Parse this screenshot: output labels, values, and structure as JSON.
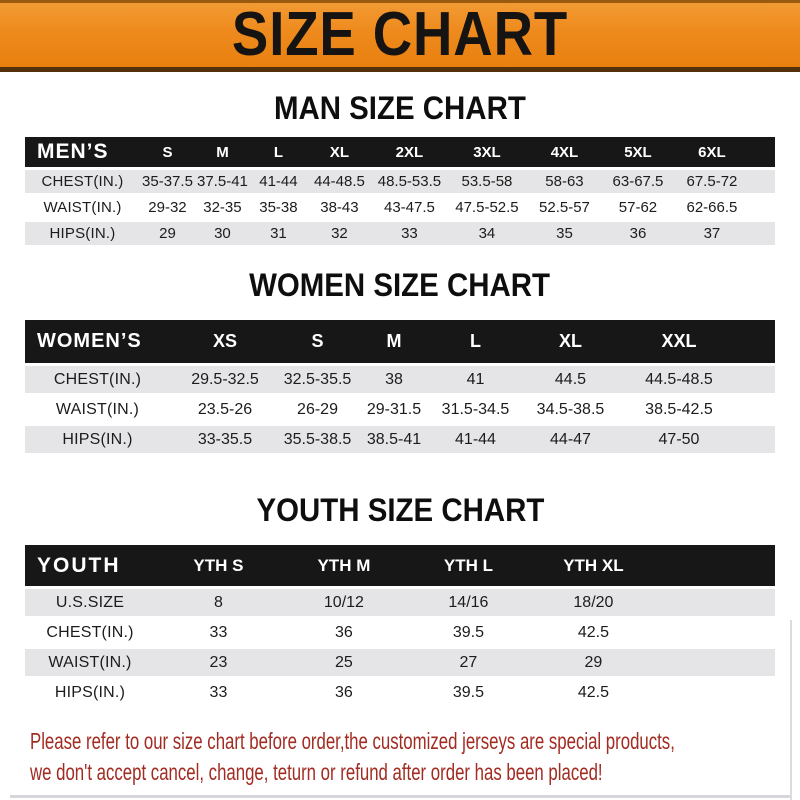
{
  "banner": {
    "title": "SIZE CHART"
  },
  "chart_data": [
    {
      "type": "table",
      "title": "MAN SIZE CHART",
      "corner_label": "MEN’S",
      "columns": [
        "S",
        "M",
        "L",
        "XL",
        "2XL",
        "3XL",
        "4XL",
        "5XL",
        "6XL"
      ],
      "rows": [
        {
          "label": "CHEST(IN.)",
          "values": [
            "35-37.5",
            "37.5-41",
            "41-44",
            "44-48.5",
            "48.5-53.5",
            "53.5-58",
            "58-63",
            "63-67.5",
            "67.5-72"
          ]
        },
        {
          "label": "WAIST(IN.)",
          "values": [
            "29-32",
            "32-35",
            "35-38",
            "38-43",
            "43-47.5",
            "47.5-52.5",
            "52.5-57",
            "57-62",
            "62-66.5"
          ]
        },
        {
          "label": "HIPS(IN.)",
          "values": [
            "29",
            "30",
            "31",
            "32",
            "33",
            "34",
            "35",
            "36",
            "37"
          ]
        }
      ]
    },
    {
      "type": "table",
      "title": "WOMEN SIZE CHART",
      "corner_label": "WOMEN’S",
      "columns": [
        "XS",
        "S",
        "M",
        "L",
        "XL",
        "XXL"
      ],
      "rows": [
        {
          "label": "CHEST(IN.)",
          "values": [
            "29.5-32.5",
            "32.5-35.5",
            "38",
            "41",
            "44.5",
            "44.5-48.5"
          ]
        },
        {
          "label": "WAIST(IN.)",
          "values": [
            "23.5-26",
            "26-29",
            "29-31.5",
            "31.5-34.5",
            "34.5-38.5",
            "38.5-42.5"
          ]
        },
        {
          "label": "HIPS(IN.)",
          "values": [
            "33-35.5",
            "35.5-38.5",
            "38.5-41",
            "41-44",
            "44-47",
            "47-50"
          ]
        }
      ]
    },
    {
      "type": "table",
      "title": "YOUTH SIZE CHART",
      "corner_label": "YOUTH",
      "columns": [
        "YTH S",
        "YTH M",
        "YTH L",
        "YTH XL"
      ],
      "rows": [
        {
          "label": "U.S.SIZE",
          "values": [
            "8",
            "10/12",
            "14/16",
            "18/20"
          ]
        },
        {
          "label": "CHEST(IN.)",
          "values": [
            "33",
            "36",
            "39.5",
            "42.5"
          ]
        },
        {
          "label": "WAIST(IN.)",
          "values": [
            "23",
            "25",
            "27",
            "29"
          ]
        },
        {
          "label": "HIPS(IN.)",
          "values": [
            "33",
            "36",
            "39.5",
            "42.5"
          ]
        }
      ]
    }
  ],
  "footer_note": {
    "line1": "Please refer to our size chart before order,the customized jerseys are special products,",
    "line2": "we don't accept cancel, change, teturn or refund after order has been placed!"
  },
  "colors": {
    "banner_bg": "#ee8a1d",
    "banner_text": "#161313",
    "bar_bg": "#171717",
    "bar_text": "#ffffff",
    "row_alt": "#e5e5e7",
    "table_text": "#1c1c1c",
    "note_color": "#a22c22"
  }
}
